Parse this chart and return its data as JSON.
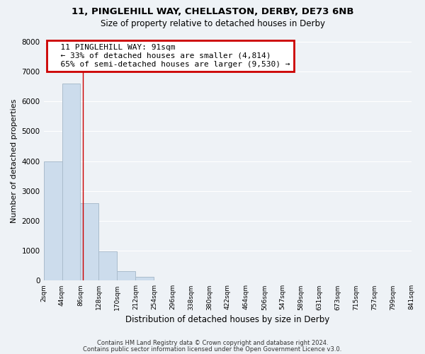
{
  "title1": "11, PINGLEHILL WAY, CHELLASTON, DERBY, DE73 6NB",
  "title2": "Size of property relative to detached houses in Derby",
  "xlabel": "Distribution of detached houses by size in Derby",
  "ylabel": "Number of detached properties",
  "bar_color": "#ccdcec",
  "bar_edge_color": "#aabccc",
  "background_color": "#eef2f6",
  "grid_color": "#ffffff",
  "annotation_box_color": "#cc0000",
  "annotation_title": "11 PINGLEHILL WAY: 91sqm",
  "annotation_line1": "← 33% of detached houses are smaller (4,814)",
  "annotation_line2": "65% of semi-detached houses are larger (9,530) →",
  "property_line_x": 91,
  "bin_edges": [
    2,
    44,
    86,
    128,
    170,
    212,
    254,
    296,
    338,
    380,
    422,
    464,
    506,
    547,
    589,
    631,
    673,
    715,
    757,
    799,
    841
  ],
  "bin_labels": [
    "2sqm",
    "44sqm",
    "86sqm",
    "128sqm",
    "170sqm",
    "212sqm",
    "254sqm",
    "296sqm",
    "338sqm",
    "380sqm",
    "422sqm",
    "464sqm",
    "506sqm",
    "547sqm",
    "589sqm",
    "631sqm",
    "673sqm",
    "715sqm",
    "757sqm",
    "799sqm",
    "841sqm"
  ],
  "bar_heights": [
    4000,
    6600,
    2600,
    980,
    320,
    130,
    0,
    0,
    0,
    0,
    0,
    0,
    0,
    0,
    0,
    0,
    0,
    0,
    0,
    0
  ],
  "ylim": [
    0,
    8000
  ],
  "yticks": [
    0,
    1000,
    2000,
    3000,
    4000,
    5000,
    6000,
    7000,
    8000
  ],
  "footer1": "Contains HM Land Registry data © Crown copyright and database right 2024.",
  "footer2": "Contains public sector information licensed under the Open Government Licence v3.0."
}
